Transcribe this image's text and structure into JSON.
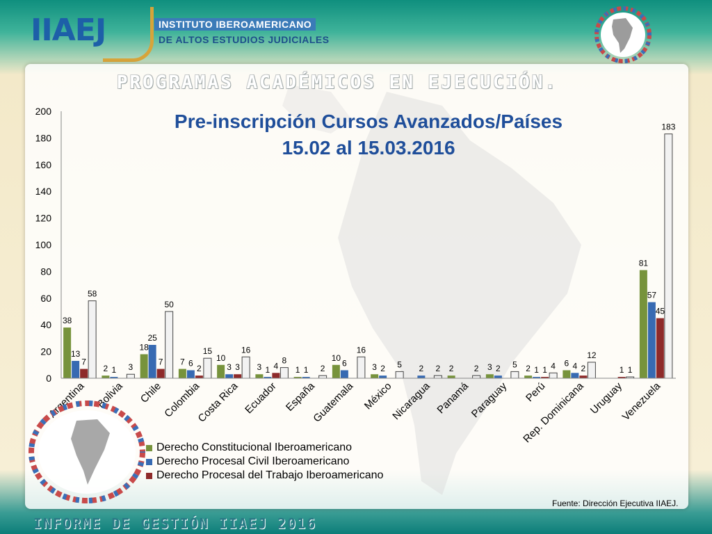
{
  "header": {
    "logo_text": "IIAEJ",
    "institute_line1": "INSTITUTO IBEROAMERICANO",
    "institute_line2": "DE ALTOS ESTUDIOS JUDICIALES"
  },
  "section_heading": "PROGRAMAS ACADÉMICOS EN EJECUCIÓN.",
  "source_note": "Fuente: Dirección Ejecutiva IIAEJ.",
  "footer_title": "INFORME DE GESTIÓN IIAEJ 2016",
  "colors": {
    "green": "#77933c",
    "blue": "#376ab2",
    "red": "#8e2a2a",
    "gray_fill": "#f2f2f2",
    "gray_stroke": "#444444",
    "title": "#1f4e9a"
  },
  "icons": [
    "globe-flags-icon",
    "globe-flags-bottom-icon",
    "map-background-icon"
  ],
  "chart_data": {
    "type": "bar",
    "title": "Pre-inscripción Cursos Avanzados/Países",
    "subtitle": "15.02 al 15.03.2016",
    "xlabel": "",
    "ylabel": "",
    "ylim": [
      0,
      200
    ],
    "yticks": [
      0,
      20,
      40,
      60,
      80,
      100,
      120,
      140,
      160,
      180,
      200
    ],
    "grid": false,
    "legend_position": "bottom-left",
    "categories": [
      "Argentina",
      "Bolivia",
      "Chile",
      "Colombia",
      "Costa Rica",
      "Ecuador",
      "España",
      "Guatemala",
      "México",
      "Nicaragua",
      "Panamá",
      "Paraguay",
      "Perú",
      "Rep. Dominicana",
      "Uruguay",
      "Venezuela"
    ],
    "series": [
      {
        "name": "Derecho Constitucional Iberoamericano",
        "color": "#77933c",
        "values": [
          38,
          2,
          18,
          7,
          10,
          3,
          1,
          10,
          3,
          null,
          2,
          3,
          2,
          6,
          null,
          81
        ]
      },
      {
        "name": "Derecho Procesal Civil Iberoamericano",
        "color": "#376ab2",
        "values": [
          13,
          1,
          25,
          6,
          3,
          1,
          1,
          6,
          2,
          2,
          null,
          2,
          1,
          4,
          null,
          57
        ]
      },
      {
        "name": "Derecho Procesal del Trabajo Iberoamericano",
        "color": "#8e2a2a",
        "values": [
          7,
          null,
          7,
          2,
          3,
          4,
          null,
          null,
          null,
          null,
          null,
          null,
          1,
          2,
          1,
          45
        ]
      },
      {
        "name": "",
        "color": "#f2f2f2",
        "values": [
          58,
          3,
          50,
          15,
          16,
          8,
          2,
          16,
          5,
          2,
          2,
          5,
          4,
          12,
          1,
          183
        ]
      }
    ]
  }
}
